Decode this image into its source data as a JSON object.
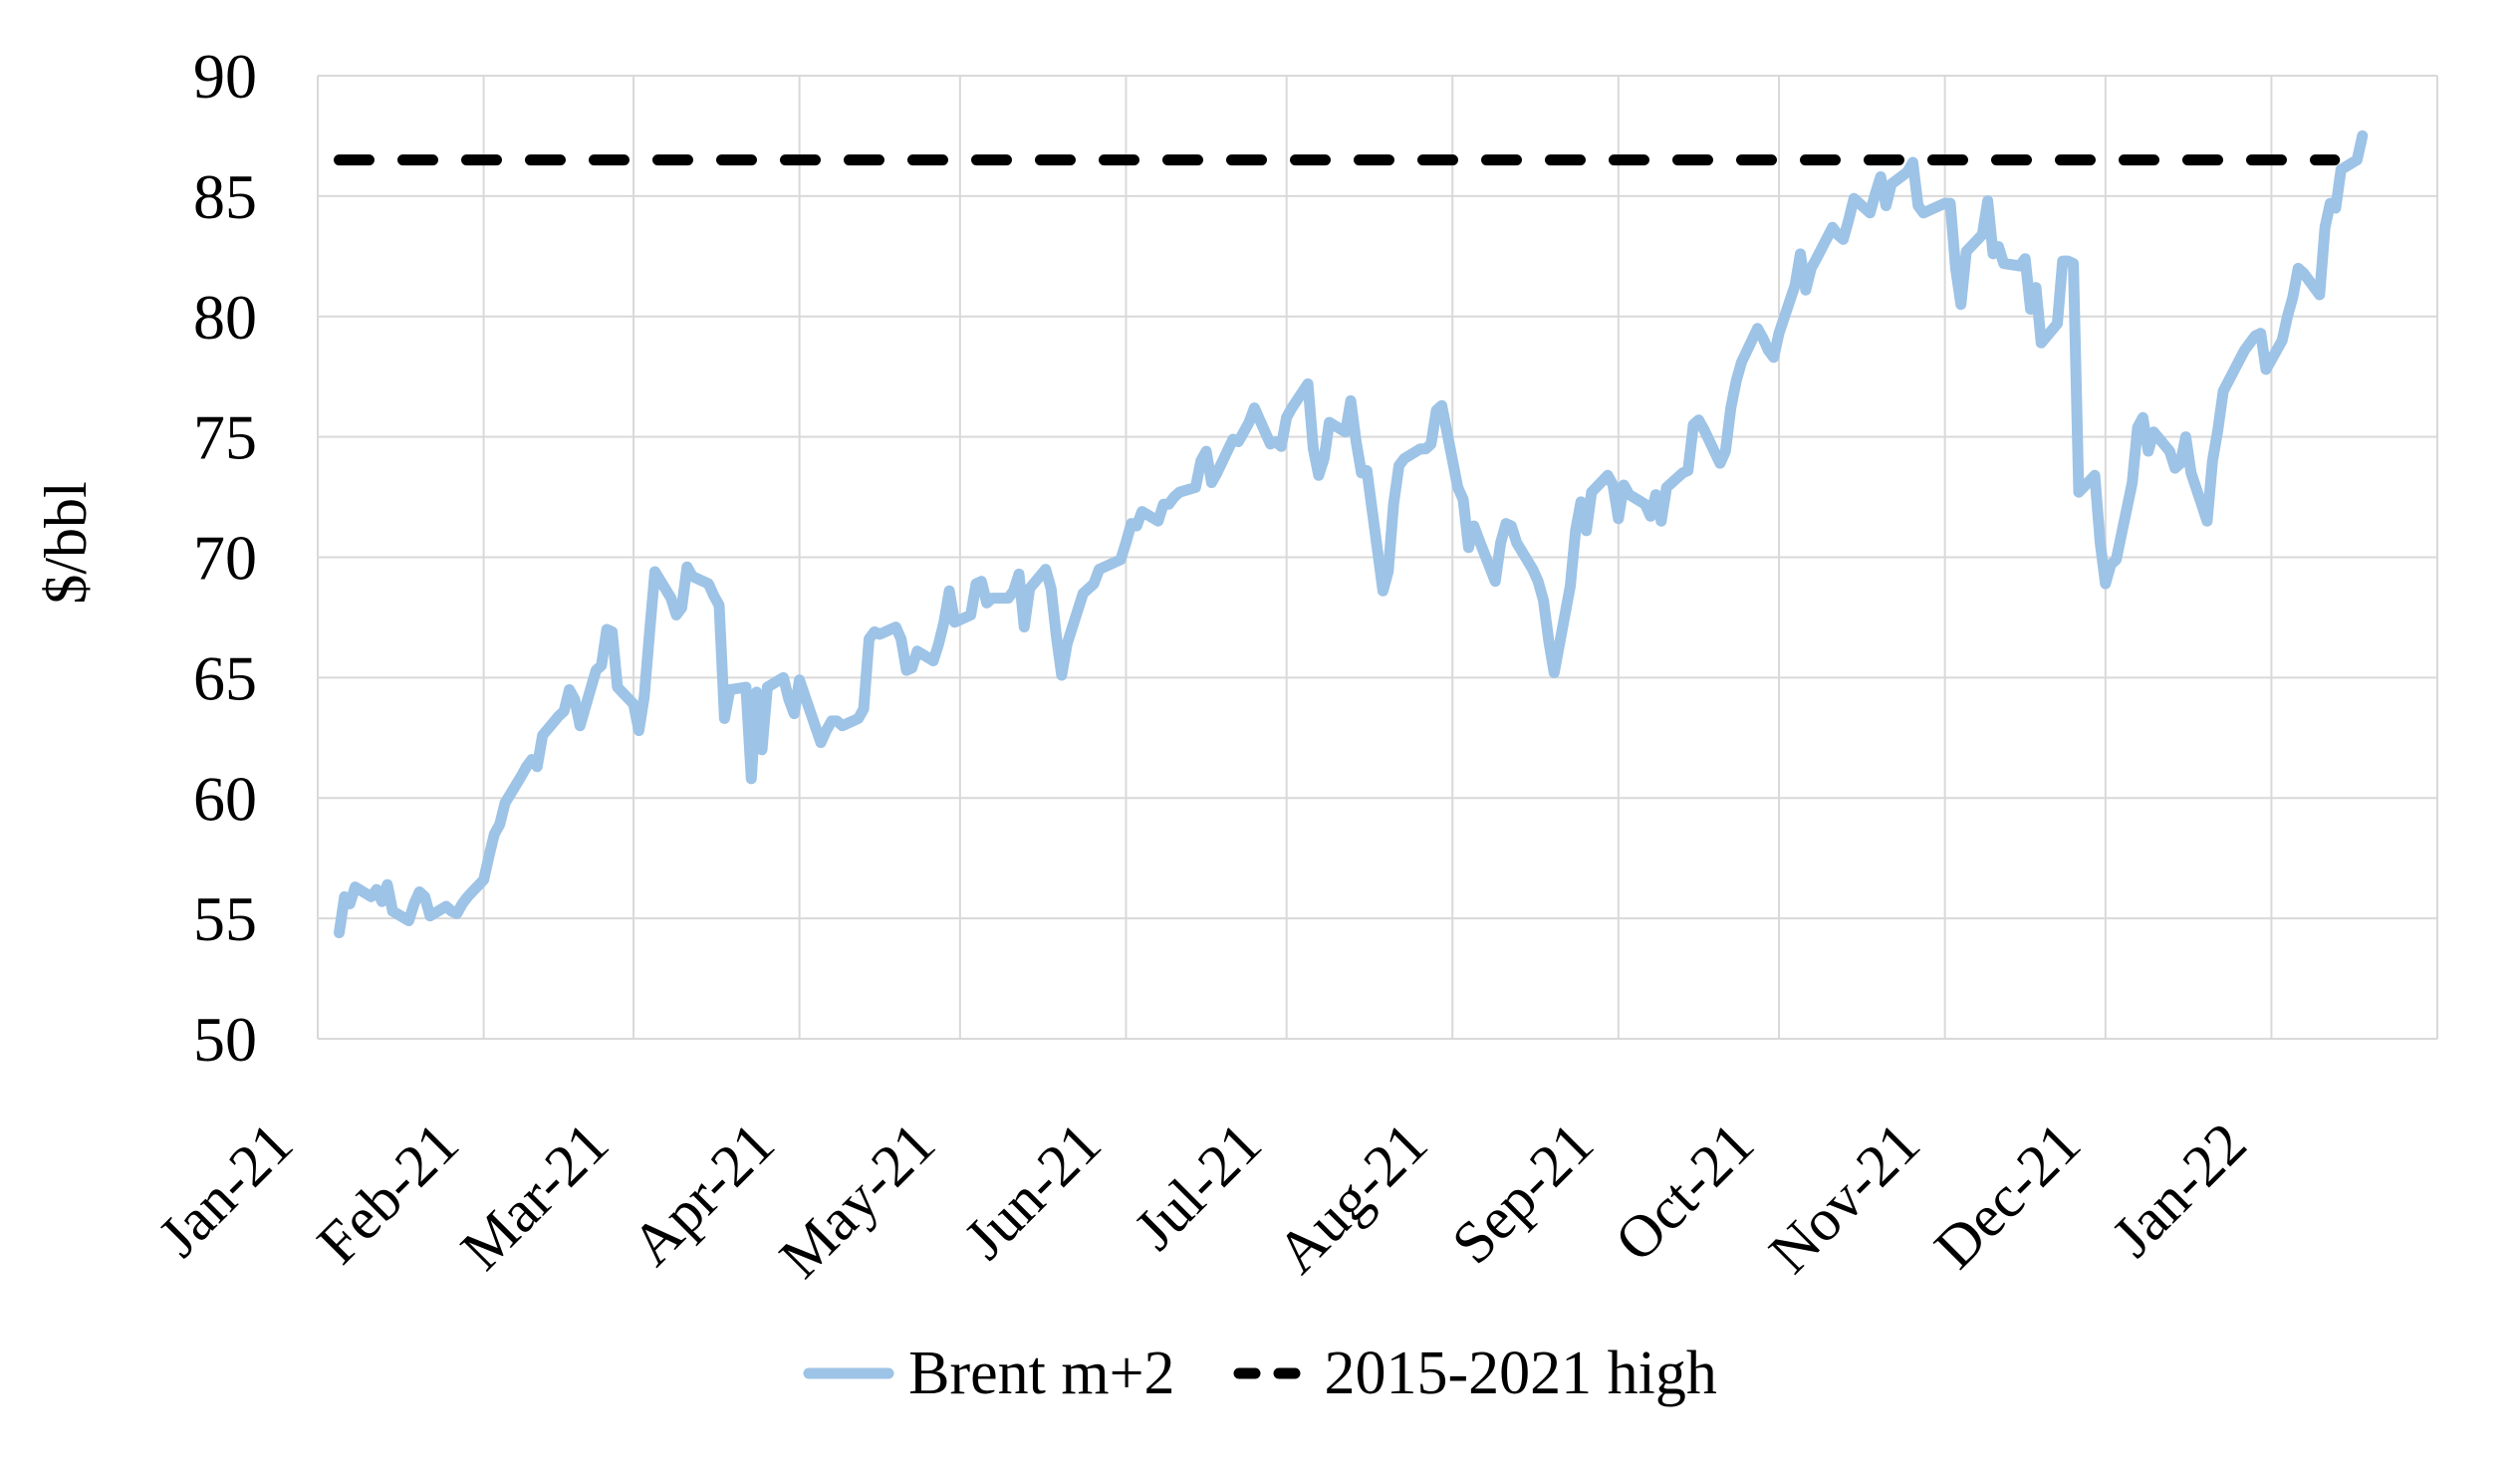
{
  "chart_data": {
    "type": "line",
    "title": "",
    "ylabel": "$/bbl",
    "ylim": [
      50,
      90
    ],
    "y_tick_step": 5,
    "y_ticks": [
      "50",
      "55",
      "60",
      "65",
      "70",
      "75",
      "80",
      "85",
      "90"
    ],
    "x_tick_labels": [
      "Jan-21",
      "Feb-21",
      "Mar-21",
      "Apr-21",
      "May-21",
      "Jun-21",
      "Jul-21",
      "Aug-21",
      "Sep-21",
      "Oct-21",
      "Nov-21",
      "Dec-21",
      "Jan-22"
    ],
    "x_domain": [
      "2021-01-01",
      "2022-02-01"
    ],
    "grid": true,
    "legend_position": "bottom-center",
    "legend": [
      {
        "label": "Brent m+2",
        "swatch": "solid-blue-line"
      },
      {
        "label": "2015-2021 high",
        "swatch": "dashed-black-line"
      }
    ],
    "reference_line": {
      "name": "2015-2021 high",
      "value": 86.5,
      "style": "dashed",
      "color": "#000000"
    },
    "colors": {
      "series_line": "#9DC3E6",
      "reference_line": "#000000",
      "gridline": "#D9D9D9",
      "text": "#000000",
      "background": "#FFFFFF"
    },
    "series": [
      {
        "name": "Brent m+2",
        "style": "solid",
        "color": "#9DC3E6",
        "points": [
          [
            "2021-01-05",
            54.4
          ],
          [
            "2021-01-06",
            55.9
          ],
          [
            "2021-01-07",
            55.6
          ],
          [
            "2021-01-08",
            56.3
          ],
          [
            "2021-01-11",
            55.9
          ],
          [
            "2021-01-12",
            56.2
          ],
          [
            "2021-01-13",
            55.7
          ],
          [
            "2021-01-14",
            56.4
          ],
          [
            "2021-01-15",
            55.3
          ],
          [
            "2021-01-18",
            54.9
          ],
          [
            "2021-01-19",
            55.6
          ],
          [
            "2021-01-20",
            56.1
          ],
          [
            "2021-01-21",
            55.9
          ],
          [
            "2021-01-22",
            55.1
          ],
          [
            "2021-01-25",
            55.5
          ],
          [
            "2021-01-26",
            55.3
          ],
          [
            "2021-01-27",
            55.2
          ],
          [
            "2021-01-28",
            55.6
          ],
          [
            "2021-01-29",
            55.9
          ],
          [
            "2021-02-01",
            56.6
          ],
          [
            "2021-02-02",
            57.6
          ],
          [
            "2021-02-03",
            58.5
          ],
          [
            "2021-02-04",
            58.9
          ],
          [
            "2021-02-05",
            59.8
          ],
          [
            "2021-02-08",
            60.9
          ],
          [
            "2021-02-09",
            61.3
          ],
          [
            "2021-02-10",
            61.6
          ],
          [
            "2021-02-11",
            61.3
          ],
          [
            "2021-02-12",
            62.6
          ],
          [
            "2021-02-15",
            63.4
          ],
          [
            "2021-02-16",
            63.6
          ],
          [
            "2021-02-17",
            64.5
          ],
          [
            "2021-02-18",
            64.1
          ],
          [
            "2021-02-19",
            63.0
          ],
          [
            "2021-02-22",
            65.3
          ],
          [
            "2021-02-23",
            65.5
          ],
          [
            "2021-02-24",
            67.0
          ],
          [
            "2021-02-25",
            66.9
          ],
          [
            "2021-02-26",
            64.6
          ],
          [
            "2021-03-01",
            63.9
          ],
          [
            "2021-03-02",
            62.8
          ],
          [
            "2021-03-03",
            64.2
          ],
          [
            "2021-03-04",
            66.9
          ],
          [
            "2021-03-05",
            69.4
          ],
          [
            "2021-03-08",
            68.3
          ],
          [
            "2021-03-09",
            67.6
          ],
          [
            "2021-03-10",
            67.9
          ],
          [
            "2021-03-11",
            69.6
          ],
          [
            "2021-03-12",
            69.2
          ],
          [
            "2021-03-15",
            68.9
          ],
          [
            "2021-03-16",
            68.4
          ],
          [
            "2021-03-17",
            68.0
          ],
          [
            "2021-03-18",
            63.3
          ],
          [
            "2021-03-19",
            64.5
          ],
          [
            "2021-03-22",
            64.6
          ],
          [
            "2021-03-23",
            60.8
          ],
          [
            "2021-03-24",
            64.4
          ],
          [
            "2021-03-25",
            62.0
          ],
          [
            "2021-03-26",
            64.6
          ],
          [
            "2021-03-29",
            65.0
          ],
          [
            "2021-03-30",
            64.1
          ],
          [
            "2021-03-31",
            63.5
          ],
          [
            "2021-04-01",
            64.9
          ],
          [
            "2021-04-05",
            62.3
          ],
          [
            "2021-04-06",
            62.8
          ],
          [
            "2021-04-07",
            63.2
          ],
          [
            "2021-04-08",
            63.2
          ],
          [
            "2021-04-09",
            63.0
          ],
          [
            "2021-04-12",
            63.3
          ],
          [
            "2021-04-13",
            63.7
          ],
          [
            "2021-04-14",
            66.6
          ],
          [
            "2021-04-15",
            66.9
          ],
          [
            "2021-04-16",
            66.8
          ],
          [
            "2021-04-19",
            67.1
          ],
          [
            "2021-04-20",
            66.6
          ],
          [
            "2021-04-21",
            65.3
          ],
          [
            "2021-04-22",
            65.4
          ],
          [
            "2021-04-23",
            66.1
          ],
          [
            "2021-04-26",
            65.7
          ],
          [
            "2021-04-27",
            66.4
          ],
          [
            "2021-04-28",
            67.3
          ],
          [
            "2021-04-29",
            68.6
          ],
          [
            "2021-04-30",
            67.3
          ],
          [
            "2021-05-03",
            67.6
          ],
          [
            "2021-05-04",
            68.9
          ],
          [
            "2021-05-05",
            69.0
          ],
          [
            "2021-05-06",
            68.1
          ],
          [
            "2021-05-07",
            68.3
          ],
          [
            "2021-05-10",
            68.3
          ],
          [
            "2021-05-11",
            68.6
          ],
          [
            "2021-05-12",
            69.3
          ],
          [
            "2021-05-13",
            67.1
          ],
          [
            "2021-05-14",
            68.7
          ],
          [
            "2021-05-17",
            69.5
          ],
          [
            "2021-05-18",
            68.7
          ],
          [
            "2021-05-19",
            66.7
          ],
          [
            "2021-05-20",
            65.1
          ],
          [
            "2021-05-21",
            66.4
          ],
          [
            "2021-05-24",
            68.5
          ],
          [
            "2021-05-25",
            68.7
          ],
          [
            "2021-05-26",
            68.9
          ],
          [
            "2021-05-27",
            69.5
          ],
          [
            "2021-05-28",
            69.6
          ],
          [
            "2021-05-31",
            69.9
          ],
          [
            "2021-06-01",
            70.6
          ],
          [
            "2021-06-02",
            71.4
          ],
          [
            "2021-06-03",
            71.3
          ],
          [
            "2021-06-04",
            71.9
          ],
          [
            "2021-06-07",
            71.5
          ],
          [
            "2021-06-08",
            72.2
          ],
          [
            "2021-06-09",
            72.2
          ],
          [
            "2021-06-10",
            72.5
          ],
          [
            "2021-06-11",
            72.7
          ],
          [
            "2021-06-14",
            72.9
          ],
          [
            "2021-06-15",
            74.0
          ],
          [
            "2021-06-16",
            74.4
          ],
          [
            "2021-06-17",
            73.1
          ],
          [
            "2021-06-18",
            73.5
          ],
          [
            "2021-06-21",
            74.9
          ],
          [
            "2021-06-22",
            74.8
          ],
          [
            "2021-06-23",
            75.2
          ],
          [
            "2021-06-24",
            75.6
          ],
          [
            "2021-06-25",
            76.2
          ],
          [
            "2021-06-28",
            74.7
          ],
          [
            "2021-06-29",
            74.8
          ],
          [
            "2021-06-30",
            74.6
          ],
          [
            "2021-07-01",
            75.8
          ],
          [
            "2021-07-02",
            76.2
          ],
          [
            "2021-07-05",
            77.2
          ],
          [
            "2021-07-06",
            74.5
          ],
          [
            "2021-07-07",
            73.4
          ],
          [
            "2021-07-08",
            74.1
          ],
          [
            "2021-07-09",
            75.6
          ],
          [
            "2021-07-12",
            75.2
          ],
          [
            "2021-07-13",
            76.5
          ],
          [
            "2021-07-14",
            74.8
          ],
          [
            "2021-07-15",
            73.5
          ],
          [
            "2021-07-16",
            73.6
          ],
          [
            "2021-07-19",
            68.6
          ],
          [
            "2021-07-20",
            69.4
          ],
          [
            "2021-07-21",
            72.2
          ],
          [
            "2021-07-22",
            73.8
          ],
          [
            "2021-07-23",
            74.1
          ],
          [
            "2021-07-26",
            74.5
          ],
          [
            "2021-07-27",
            74.5
          ],
          [
            "2021-07-28",
            74.7
          ],
          [
            "2021-07-29",
            76.1
          ],
          [
            "2021-07-30",
            76.3
          ],
          [
            "2021-08-02",
            72.9
          ],
          [
            "2021-08-03",
            72.4
          ],
          [
            "2021-08-04",
            70.4
          ],
          [
            "2021-08-05",
            71.3
          ],
          [
            "2021-08-06",
            70.7
          ],
          [
            "2021-08-09",
            69.0
          ],
          [
            "2021-08-10",
            70.6
          ],
          [
            "2021-08-11",
            71.4
          ],
          [
            "2021-08-12",
            71.3
          ],
          [
            "2021-08-13",
            70.6
          ],
          [
            "2021-08-16",
            69.5
          ],
          [
            "2021-08-17",
            69.0
          ],
          [
            "2021-08-18",
            68.2
          ],
          [
            "2021-08-19",
            66.5
          ],
          [
            "2021-08-20",
            65.2
          ],
          [
            "2021-08-23",
            68.8
          ],
          [
            "2021-08-24",
            71.1
          ],
          [
            "2021-08-25",
            72.3
          ],
          [
            "2021-08-26",
            71.1
          ],
          [
            "2021-08-27",
            72.7
          ],
          [
            "2021-08-30",
            73.4
          ],
          [
            "2021-08-31",
            73.0
          ],
          [
            "2021-09-01",
            71.6
          ],
          [
            "2021-09-02",
            73.0
          ],
          [
            "2021-09-03",
            72.6
          ],
          [
            "2021-09-06",
            72.2
          ],
          [
            "2021-09-07",
            71.7
          ],
          [
            "2021-09-08",
            72.6
          ],
          [
            "2021-09-09",
            71.5
          ],
          [
            "2021-09-10",
            72.9
          ],
          [
            "2021-09-13",
            73.5
          ],
          [
            "2021-09-14",
            73.6
          ],
          [
            "2021-09-15",
            75.5
          ],
          [
            "2021-09-16",
            75.7
          ],
          [
            "2021-09-17",
            75.3
          ],
          [
            "2021-09-20",
            73.9
          ],
          [
            "2021-09-21",
            74.4
          ],
          [
            "2021-09-22",
            76.2
          ],
          [
            "2021-09-23",
            77.3
          ],
          [
            "2021-09-24",
            78.1
          ],
          [
            "2021-09-27",
            79.5
          ],
          [
            "2021-09-28",
            79.1
          ],
          [
            "2021-09-29",
            78.6
          ],
          [
            "2021-09-30",
            78.3
          ],
          [
            "2021-10-01",
            79.3
          ],
          [
            "2021-10-04",
            81.3
          ],
          [
            "2021-10-05",
            82.6
          ],
          [
            "2021-10-06",
            81.1
          ],
          [
            "2021-10-07",
            82.0
          ],
          [
            "2021-10-08",
            82.4
          ],
          [
            "2021-10-11",
            83.7
          ],
          [
            "2021-10-12",
            83.4
          ],
          [
            "2021-10-13",
            83.2
          ],
          [
            "2021-10-14",
            84.0
          ],
          [
            "2021-10-15",
            84.9
          ],
          [
            "2021-10-18",
            84.3
          ],
          [
            "2021-10-19",
            85.1
          ],
          [
            "2021-10-20",
            85.8
          ],
          [
            "2021-10-21",
            84.6
          ],
          [
            "2021-10-22",
            85.5
          ],
          [
            "2021-10-25",
            86.0
          ],
          [
            "2021-10-26",
            86.4
          ],
          [
            "2021-10-27",
            84.6
          ],
          [
            "2021-10-28",
            84.3
          ],
          [
            "2021-10-29",
            84.4
          ],
          [
            "2021-11-01",
            84.7
          ],
          [
            "2021-11-02",
            84.7
          ],
          [
            "2021-11-03",
            82.0
          ],
          [
            "2021-11-04",
            80.5
          ],
          [
            "2021-11-05",
            82.7
          ],
          [
            "2021-11-08",
            83.4
          ],
          [
            "2021-11-09",
            84.8
          ],
          [
            "2021-11-10",
            82.6
          ],
          [
            "2021-11-11",
            82.9
          ],
          [
            "2021-11-12",
            82.2
          ],
          [
            "2021-11-15",
            82.1
          ],
          [
            "2021-11-16",
            82.4
          ],
          [
            "2021-11-17",
            80.3
          ],
          [
            "2021-11-18",
            81.2
          ],
          [
            "2021-11-19",
            78.9
          ],
          [
            "2021-11-22",
            79.7
          ],
          [
            "2021-11-23",
            82.3
          ],
          [
            "2021-11-24",
            82.3
          ],
          [
            "2021-11-25",
            82.2
          ],
          [
            "2021-11-26",
            72.7
          ],
          [
            "2021-11-29",
            73.4
          ],
          [
            "2021-11-30",
            70.6
          ],
          [
            "2021-12-01",
            68.9
          ],
          [
            "2021-12-02",
            69.7
          ],
          [
            "2021-12-03",
            69.9
          ],
          [
            "2021-12-06",
            73.1
          ],
          [
            "2021-12-07",
            75.4
          ],
          [
            "2021-12-08",
            75.8
          ],
          [
            "2021-12-09",
            74.4
          ],
          [
            "2021-12-10",
            75.2
          ],
          [
            "2021-12-13",
            74.4
          ],
          [
            "2021-12-14",
            73.7
          ],
          [
            "2021-12-15",
            73.9
          ],
          [
            "2021-12-16",
            75.0
          ],
          [
            "2021-12-17",
            73.5
          ],
          [
            "2021-12-20",
            71.5
          ],
          [
            "2021-12-21",
            74.0
          ],
          [
            "2021-12-22",
            75.3
          ],
          [
            "2021-12-23",
            76.9
          ],
          [
            "2021-12-27",
            78.6
          ],
          [
            "2021-12-28",
            78.9
          ],
          [
            "2021-12-29",
            79.2
          ],
          [
            "2021-12-30",
            79.3
          ],
          [
            "2021-12-31",
            77.8
          ],
          [
            "2022-01-03",
            79.0
          ],
          [
            "2022-01-04",
            80.0
          ],
          [
            "2022-01-05",
            80.8
          ],
          [
            "2022-01-06",
            82.0
          ],
          [
            "2022-01-07",
            81.8
          ],
          [
            "2022-01-10",
            80.9
          ],
          [
            "2022-01-11",
            83.7
          ],
          [
            "2022-01-12",
            84.7
          ],
          [
            "2022-01-13",
            84.5
          ],
          [
            "2022-01-14",
            86.1
          ],
          [
            "2022-01-17",
            86.5
          ],
          [
            "2022-01-18",
            87.5
          ]
        ]
      }
    ]
  }
}
